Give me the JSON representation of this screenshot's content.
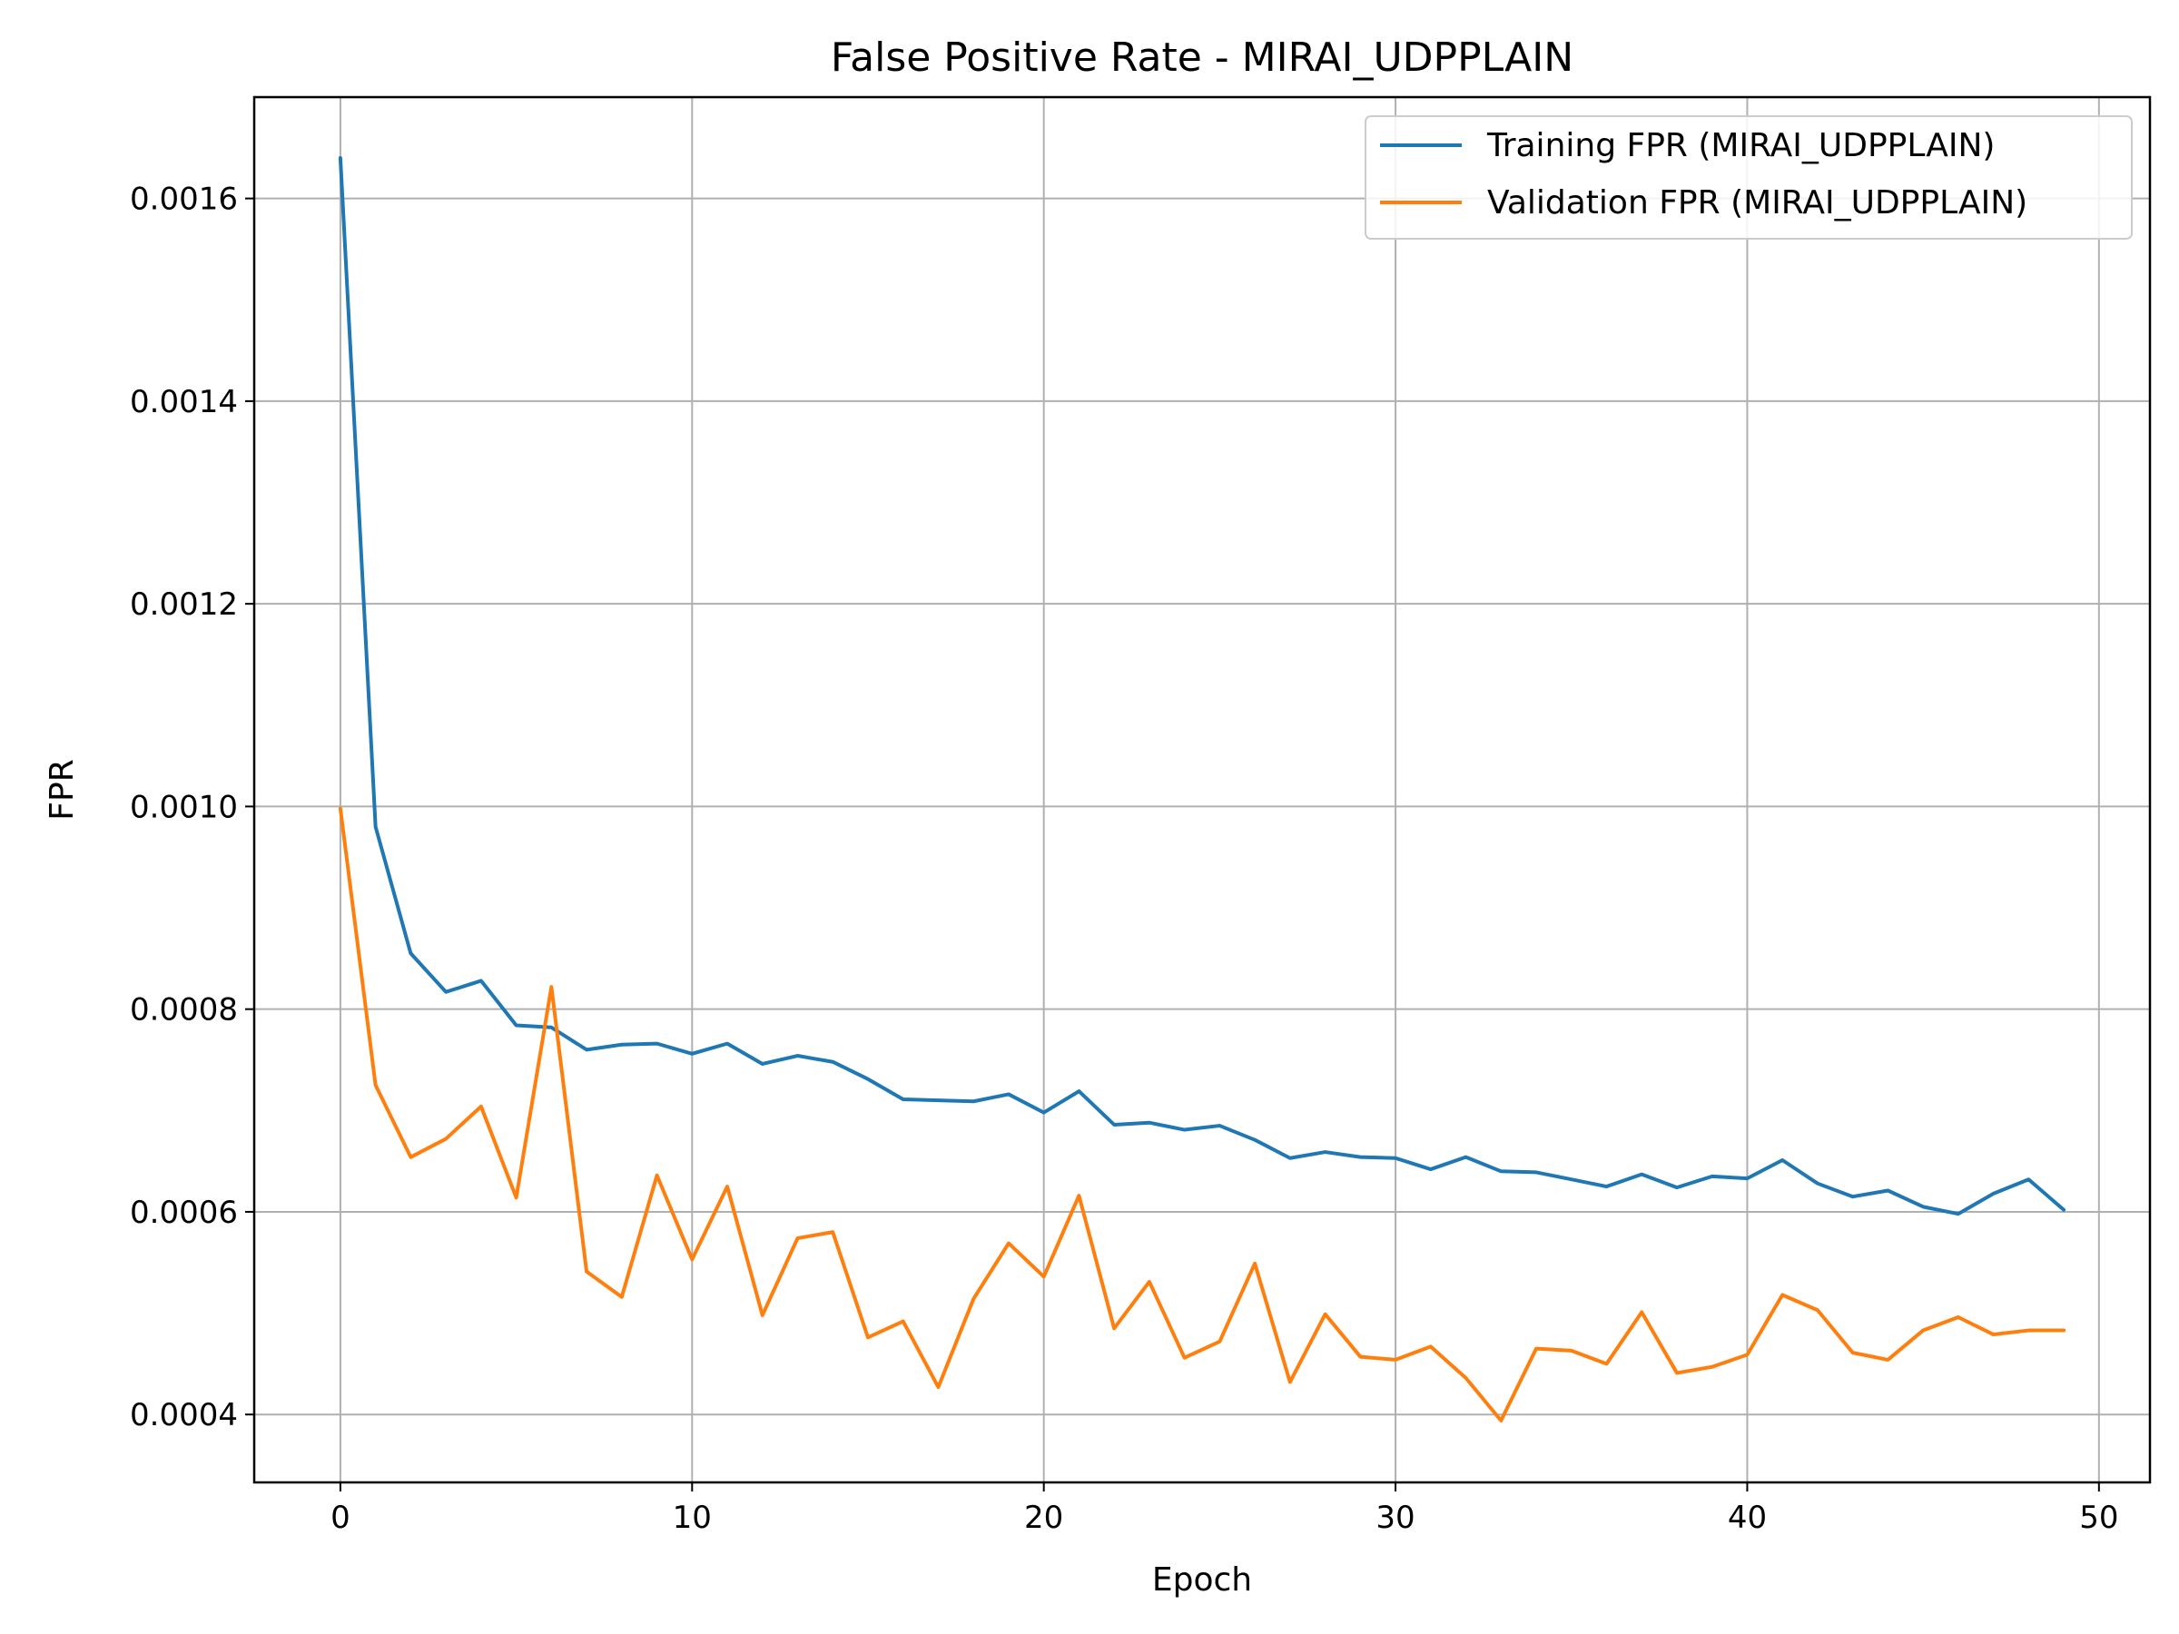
{
  "chart_data": {
    "type": "line",
    "title": "False Positive Rate - MIRAI_UDPPLAIN",
    "xlabel": "Epoch",
    "ylabel": "FPR",
    "xlim": [
      -2.45,
      51.45
    ],
    "ylim": [
      0.000333,
      0.0017
    ],
    "xticks": [
      0,
      10,
      20,
      30,
      40,
      50
    ],
    "xtick_labels": [
      "0",
      "10",
      "20",
      "30",
      "40",
      "50"
    ],
    "yticks": [
      0.0004,
      0.0006,
      0.0008,
      0.001,
      0.0012,
      0.0014,
      0.0016
    ],
    "ytick_labels": [
      "0.0004",
      "0.0006",
      "0.0008",
      "0.0010",
      "0.0012",
      "0.0014",
      "0.0016"
    ],
    "grid": true,
    "legend_position": "top-right",
    "x": [
      0,
      1,
      2,
      3,
      4,
      5,
      6,
      7,
      8,
      9,
      10,
      11,
      12,
      13,
      14,
      15,
      16,
      17,
      18,
      19,
      20,
      21,
      22,
      23,
      24,
      25,
      26,
      27,
      28,
      29,
      30,
      31,
      32,
      33,
      34,
      35,
      36,
      37,
      38,
      39,
      40,
      41,
      42,
      43,
      44,
      45,
      46,
      47,
      48,
      49
    ],
    "series": [
      {
        "name": "Training FPR (MIRAI_UDPPLAIN)",
        "color": "#1f77b4",
        "values": [
          0.00164,
          0.00098,
          0.000855,
          0.000817,
          0.000828,
          0.000784,
          0.000782,
          0.00076,
          0.000765,
          0.000766,
          0.000756,
          0.000766,
          0.000746,
          0.000754,
          0.000748,
          0.000731,
          0.000711,
          0.00071,
          0.000709,
          0.000716,
          0.000698,
          0.000719,
          0.000686,
          0.000688,
          0.000681,
          0.000685,
          0.000671,
          0.000653,
          0.000659,
          0.000654,
          0.000653,
          0.000642,
          0.000654,
          0.00064,
          0.000639,
          0.000632,
          0.000625,
          0.000637,
          0.000624,
          0.000635,
          0.000633,
          0.000651,
          0.000628,
          0.000615,
          0.000621,
          0.000605,
          0.000598,
          0.000618,
          0.000632,
          0.000602
        ]
      },
      {
        "name": "Validation FPR (MIRAI_UDPPLAIN)",
        "color": "#ff7f0e",
        "values": [
          0.000998,
          0.000725,
          0.000654,
          0.000672,
          0.000704,
          0.000614,
          0.000822,
          0.000541,
          0.000516,
          0.000636,
          0.000553,
          0.000625,
          0.000498,
          0.000574,
          0.00058,
          0.000476,
          0.000492,
          0.000427,
          0.000514,
          0.000569,
          0.000536,
          0.000616,
          0.000485,
          0.000531,
          0.000456,
          0.000472,
          0.000549,
          0.000432,
          0.000499,
          0.000457,
          0.000454,
          0.000467,
          0.000436,
          0.000394,
          0.000465,
          0.000463,
          0.00045,
          0.000501,
          0.000441,
          0.000447,
          0.000459,
          0.000518,
          0.000503,
          0.000461,
          0.000454,
          0.000483,
          0.000496,
          0.000479,
          0.000483,
          0.000483
        ]
      }
    ]
  }
}
